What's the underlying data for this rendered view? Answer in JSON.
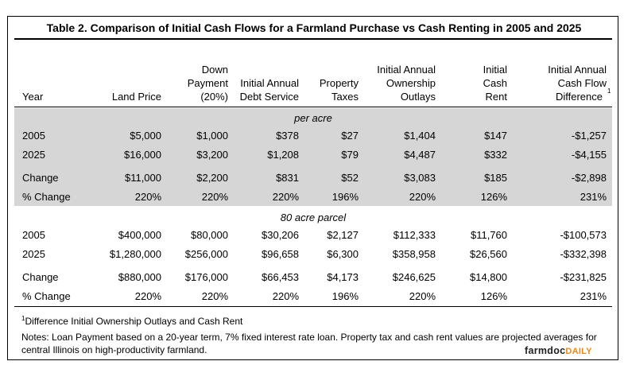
{
  "title": "Table 2. Comparison of Initial Cash Flows for a Farmland Purchase vs Cash Renting in 2005 and 2025",
  "columns": [
    {
      "lines": [
        "Year"
      ]
    },
    {
      "lines": [
        "Land Price"
      ]
    },
    {
      "lines": [
        "Down",
        "Payment",
        "(20%)"
      ]
    },
    {
      "lines": [
        "Initial Annual",
        "Debt Service"
      ]
    },
    {
      "lines": [
        "Property",
        "Taxes"
      ]
    },
    {
      "lines": [
        "Initial Annual",
        "Ownership",
        "Outlays"
      ]
    },
    {
      "lines": [
        "Initial",
        "Cash",
        "Rent"
      ]
    },
    {
      "lines": [
        "Initial Annual",
        "Cash Flow",
        "Difference"
      ]
    }
  ],
  "footnote_mark": "1",
  "sections": [
    {
      "label": "per acre",
      "rows": [
        [
          "2005",
          "$5,000",
          "$1,000",
          "$378",
          "$27",
          "$1,404",
          "$147",
          "-$1,257"
        ],
        [
          "2025",
          "$16,000",
          "$3,200",
          "$1,208",
          "$79",
          "$4,487",
          "$332",
          "-$4,155"
        ],
        [
          "Change",
          "$11,000",
          "$2,200",
          "$831",
          "$52",
          "$3,083",
          "$185",
          "-$2,898"
        ],
        [
          "% Change",
          "220%",
          "220%",
          "220%",
          "196%",
          "220%",
          "126%",
          "231%"
        ]
      ]
    },
    {
      "label": "80 acre parcel",
      "rows": [
        [
          "2005",
          "$400,000",
          "$80,000",
          "$30,206",
          "$2,127",
          "$112,333",
          "$11,760",
          "-$100,573"
        ],
        [
          "2025",
          "$1,280,000",
          "$256,000",
          "$96,658",
          "$6,300",
          "$358,958",
          "$26,560",
          "-$332,398"
        ],
        [
          "Change",
          "$880,000",
          "$176,000",
          "$66,453",
          "$4,173",
          "$246,625",
          "$14,800",
          "-$231,825"
        ],
        [
          "% Change",
          "220%",
          "220%",
          "220%",
          "196%",
          "220%",
          "126%",
          "231%"
        ]
      ]
    }
  ],
  "footnote": {
    "mark": "1",
    "text": "Difference Initial Ownership Outlays and Cash Rent"
  },
  "notes": [
    "Notes: Loan Payment based on a 20-year term, 7% fixed interest rate loan. Property tax and cash rent values are projected averages for",
    "central Illinois on high-productivity farmland."
  ],
  "logo": {
    "part1": "farmdoc",
    "part2": "DAILY"
  },
  "colors": {
    "shade": "#d6d6d6",
    "logo_accent": "#e58a1f"
  }
}
